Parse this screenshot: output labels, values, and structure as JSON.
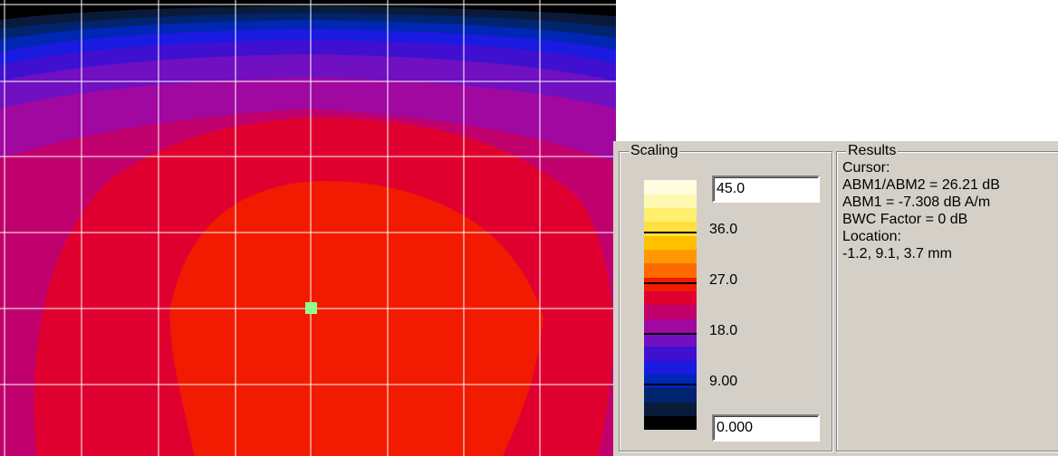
{
  "scaling": {
    "title": "Scaling",
    "max_value": "45.0",
    "min_value": "0.000",
    "tick_labels": [
      "36.0",
      "27.0",
      "18.0",
      "9.00"
    ]
  },
  "results": {
    "title": "Results",
    "lines": [
      "Cursor:",
      "ABM1/ABM2 = 26.21 dB",
      "ABM1 = -7.308 dB A/m",
      "BWC Factor = 0 dB",
      "Location:",
      "-1.2, 9.1, 3.7 mm"
    ]
  },
  "colors": {
    "scale": [
      "#000000",
      "#0a1a3a",
      "#00246e",
      "#0026b4",
      "#1a1ae0",
      "#4010d0",
      "#7010c0",
      "#a008a0",
      "#c0006c",
      "#e00030",
      "#f21a00",
      "#ff6a00",
      "#ff9800",
      "#ffc000",
      "#ffe040",
      "#fff070",
      "#fff8b0",
      "#fffde0"
    ],
    "cursor": "#8cff8c",
    "grid": "#ffffff",
    "panel": "#d4d0c8"
  }
}
